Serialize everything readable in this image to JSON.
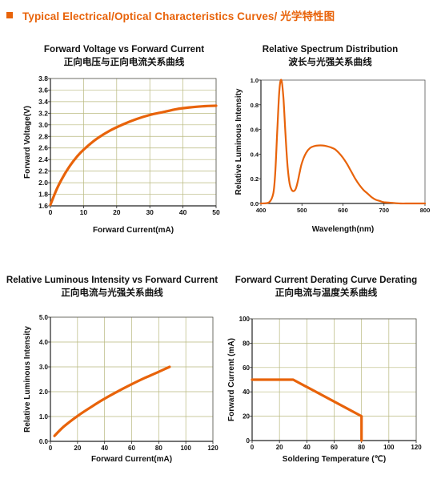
{
  "header": {
    "title": "Typical Electrical/Optical Characteristics Curves/ 光学特性图",
    "accent_color": "#e8630a"
  },
  "chart_data": [
    {
      "type": "line",
      "title": "Forward Voltage vs Forward Current",
      "subtitle": "正向电压与正向电流关系曲线",
      "xlabel": "Forward Current(mA)",
      "ylabel": "Forward Voltage(V)",
      "xlim": [
        0,
        50
      ],
      "ylim": [
        1.6,
        3.8
      ],
      "xticks": [
        "0",
        "10",
        "20",
        "30",
        "40",
        "50"
      ],
      "yticks": [
        "1.6",
        "1.8",
        "2.0",
        "2.2",
        "2.4",
        "2.6",
        "2.8",
        "3.0",
        "3.2",
        "3.4",
        "3.6",
        "3.8"
      ],
      "grid": true,
      "series": [
        {
          "color": "#e8630a",
          "x": [
            0,
            2,
            4,
            6,
            8,
            10,
            14,
            18,
            22,
            26,
            30,
            34,
            38,
            42,
            46,
            50
          ],
          "y": [
            1.62,
            1.9,
            2.12,
            2.3,
            2.45,
            2.57,
            2.76,
            2.9,
            3.01,
            3.1,
            3.17,
            3.22,
            3.27,
            3.3,
            3.32,
            3.33
          ]
        }
      ]
    },
    {
      "type": "line",
      "title": "Relative Spectrum Distribution",
      "subtitle": "波长与光强关系曲线",
      "xlabel": "Wavelength(nm)",
      "ylabel": "Relative Luminous Intensity",
      "xlim": [
        400,
        800
      ],
      "ylim": [
        0,
        1.0
      ],
      "xticks": [
        "400",
        "500",
        "600",
        "700",
        "800"
      ],
      "yticks": [
        "0.0",
        "0.2",
        "0.4",
        "0.6",
        "0.8",
        "1.0"
      ],
      "grid": false,
      "series": [
        {
          "color": "#e8630a",
          "x": [
            400,
            420,
            430,
            435,
            440,
            445,
            450,
            455,
            460,
            465,
            470,
            475,
            480,
            485,
            490,
            495,
            500,
            510,
            520,
            530,
            540,
            550,
            560,
            570,
            580,
            590,
            600,
            610,
            620,
            630,
            640,
            650,
            660,
            670,
            680,
            690,
            700,
            720,
            740,
            760,
            780,
            800
          ],
          "y": [
            0.0,
            0.01,
            0.08,
            0.25,
            0.6,
            0.92,
            1.0,
            0.85,
            0.55,
            0.3,
            0.16,
            0.11,
            0.1,
            0.12,
            0.18,
            0.26,
            0.33,
            0.41,
            0.45,
            0.465,
            0.47,
            0.47,
            0.465,
            0.455,
            0.44,
            0.41,
            0.37,
            0.32,
            0.26,
            0.2,
            0.15,
            0.11,
            0.08,
            0.05,
            0.03,
            0.02,
            0.01,
            0.005,
            0.0,
            0.0,
            0.0,
            0.0
          ]
        }
      ]
    },
    {
      "type": "line",
      "title": "Relative Luminous Intensity vs Forward Current",
      "subtitle": "正向电流与光强关系曲线",
      "xlabel": "Forward Current(mA)",
      "ylabel": "Relative Luminous Intensity",
      "xlim": [
        0,
        120
      ],
      "ylim": [
        0,
        5.0
      ],
      "xticks": [
        "0",
        "20",
        "40",
        "60",
        "80",
        "100",
        "120"
      ],
      "yticks": [
        "0.0",
        "1.0",
        "2.0",
        "3.0",
        "4.0",
        "5.0"
      ],
      "grid": true,
      "series": [
        {
          "color": "#e8630a",
          "x": [
            3,
            10,
            20,
            30,
            40,
            50,
            60,
            70,
            80,
            88
          ],
          "y": [
            0.22,
            0.6,
            1.02,
            1.38,
            1.72,
            2.02,
            2.3,
            2.56,
            2.8,
            3.0
          ]
        }
      ]
    },
    {
      "type": "line",
      "title": "Forward Current Derating Curve Derating",
      "subtitle": "正向电流与温度关系曲线",
      "xlabel": "Soldering Temperature (℃)",
      "ylabel": "Forward Current (mA)",
      "xlim": [
        0,
        120
      ],
      "ylim": [
        0,
        100
      ],
      "xticks": [
        "0",
        "20",
        "40",
        "60",
        "80",
        "100",
        "120"
      ],
      "yticks": [
        "0",
        "20",
        "40",
        "60",
        "80",
        "100"
      ],
      "grid": true,
      "series": [
        {
          "color": "#e8630a",
          "x": [
            0,
            30,
            80,
            80
          ],
          "y": [
            50,
            50,
            20,
            0
          ]
        }
      ]
    }
  ]
}
